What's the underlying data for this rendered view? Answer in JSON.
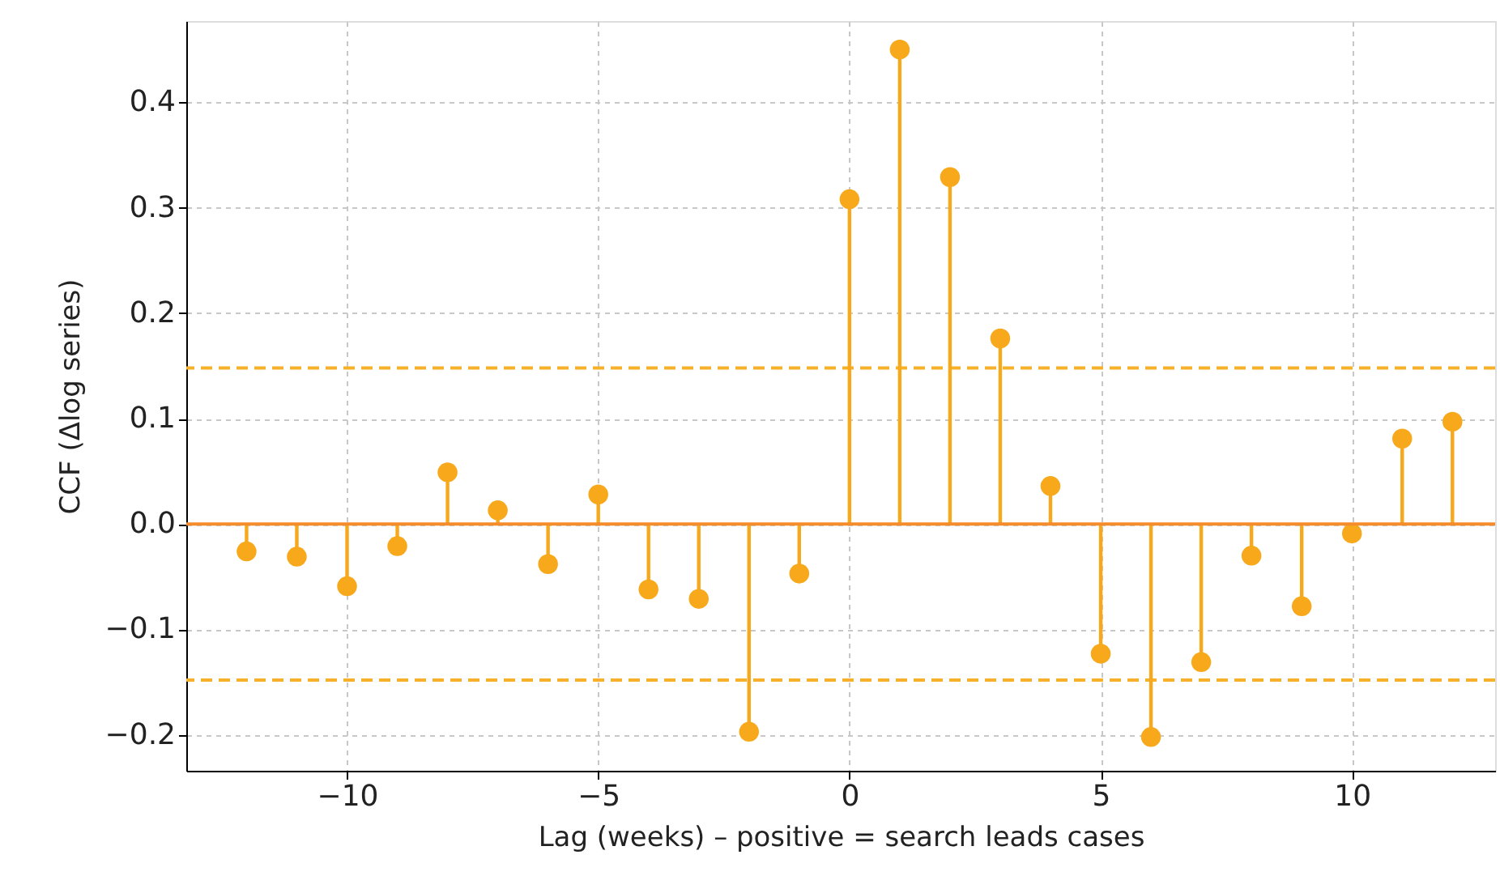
{
  "chart_data": {
    "type": "lollipop",
    "xlabel": "Lag (weeks) – positive = search leads cases",
    "ylabel": "CCF (Δlog series)",
    "x": [
      -12,
      -11,
      -10,
      -9,
      -8,
      -7,
      -6,
      -5,
      -4,
      -3,
      -2,
      -1,
      0,
      1,
      2,
      3,
      4,
      5,
      6,
      7,
      8,
      9,
      10,
      11,
      12
    ],
    "series": [
      {
        "color": "#f7a81b",
        "values": [
          -0.026,
          -0.031,
          -0.059,
          -0.021,
          0.049,
          0.013,
          -0.038,
          0.028,
          -0.062,
          -0.071,
          -0.197,
          -0.047,
          0.308,
          0.45,
          0.329,
          0.176,
          0.036,
          -0.123,
          -0.202,
          -0.131,
          -0.03,
          -0.078,
          -0.009,
          0.081,
          0.097
        ]
      }
    ],
    "xlim": [
      -13.2,
      12.85
    ],
    "ylim": [
      -0.234,
      0.477
    ],
    "xticks": [
      {
        "value": -10,
        "label": "−10"
      },
      {
        "value": -5,
        "label": "−5"
      },
      0,
      5,
      10
    ],
    "yticks": [
      {
        "value": -0.2,
        "label": "−0.2"
      },
      {
        "value": -0.1,
        "label": "−0.1"
      },
      {
        "value": 0,
        "label": "0.0"
      },
      0.1,
      0.2,
      0.3,
      0.4
    ],
    "ref_lines": [
      {
        "axis": "y",
        "value": 0,
        "color": "#f58c2c",
        "line_style": "solid"
      },
      {
        "axis": "y",
        "value": 0.148,
        "color": "#f7b02a",
        "line_style": "dashed"
      },
      {
        "axis": "y",
        "value": -0.148,
        "color": "#f7b02a",
        "line_style": "dashed"
      }
    ],
    "grid": true,
    "marker": "circle"
  }
}
